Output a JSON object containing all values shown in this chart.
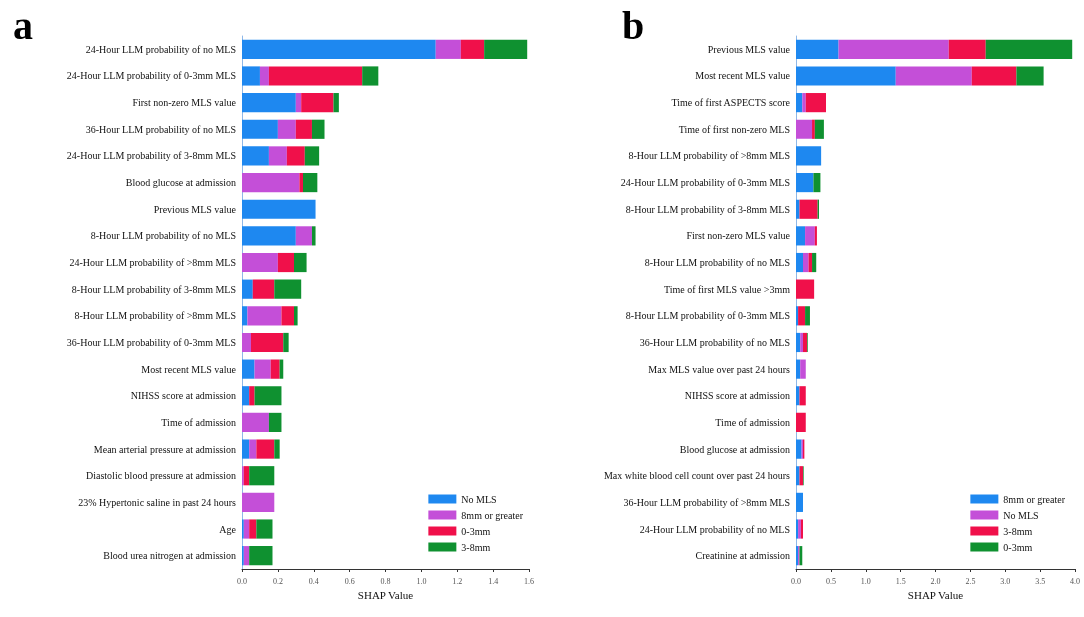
{
  "chart_data": [
    {
      "type": "bar",
      "title": "a",
      "orientation": "horizontal",
      "stacked": true,
      "xlabel": "SHAP Value",
      "legend": "bottom right",
      "grid": false,
      "categories": [
        "24-Hour LLM probability of no MLS",
        "24-Hour LLM probability of 0-3mm MLS",
        "First non-zero MLS value",
        "36-Hour LLM probability of no MLS",
        "24-Hour LLM probability of 3-8mm MLS",
        "Blood glucose at admission",
        "Previous MLS value",
        "8-Hour LLM probability of no MLS",
        "24-Hour LLM probability of >8mm MLS",
        "8-Hour LLM probability of 3-8mm MLS",
        "8-Hour LLM probability of >8mm MLS",
        "36-Hour LLM probability of 0-3mm MLS",
        "Most recent MLS value",
        "NIHSS score at admission",
        "Time of admission",
        "Mean arterial pressure at admission",
        "Diastolic blood pressure at admission",
        "23% Hypertonic saline in past 24 hours",
        "Age",
        "Blood urea nitrogen at admission"
      ],
      "xlim": [
        0,
        1.6
      ],
      "xticks": [
        {
          "value": 0,
          "label": "0.0"
        },
        0.2,
        0.4,
        0.6,
        0.8,
        {
          "value": 1,
          "label": "1.0"
        },
        1.2,
        1.4,
        1.6
      ],
      "series": [
        {
          "name": "No MLS",
          "color": "#1e88f0",
          "values": [
            1.08,
            0.1,
            0.3,
            0.2,
            0.15,
            0,
            0.41,
            0.3,
            0,
            0.06,
            0.03,
            0,
            0.07,
            0.04,
            0,
            0.04,
            0,
            0,
            0.01,
            0.01
          ]
        },
        {
          "name": "8mm or greater",
          "color": "#c44fd8",
          "values": [
            0.14,
            0.05,
            0.03,
            0.1,
            0.1,
            0.32,
            0,
            0.09,
            0.2,
            0,
            0.19,
            0.05,
            0.09,
            0,
            0.15,
            0.04,
            0.01,
            0.18,
            0.03,
            0.03
          ]
        },
        {
          "name": "0-3mm",
          "color": "#f0104a",
          "values": [
            0.13,
            0.52,
            0.18,
            0.09,
            0.1,
            0.02,
            0,
            0,
            0.09,
            0.12,
            0.07,
            0.18,
            0.05,
            0.03,
            0,
            0.1,
            0.03,
            0,
            0.04,
            0
          ]
        },
        {
          "name": "3-8mm",
          "color": "#0f9130",
          "values": [
            0.24,
            0.09,
            0.03,
            0.07,
            0.08,
            0.08,
            0,
            0.02,
            0.07,
            0.15,
            0.02,
            0.03,
            0.02,
            0.15,
            0.07,
            0.03,
            0.14,
            0,
            0.09,
            0.13
          ]
        }
      ]
    },
    {
      "type": "bar",
      "title": "b",
      "orientation": "horizontal",
      "stacked": true,
      "xlabel": "SHAP Value",
      "legend": "bottom right",
      "grid": false,
      "categories": [
        "Previous MLS value",
        "Most recent MLS value",
        "Time of first ASPECTS score",
        "Time of first non-zero MLS",
        "8-Hour LLM probability of >8mm MLS",
        "24-Hour LLM probability of 0-3mm MLS",
        "8-Hour LLM probability of 3-8mm MLS",
        "First non-zero MLS value",
        "8-Hour LLM probability of no MLS",
        "Time of first MLS value >3mm",
        "8-Hour LLM probability of 0-3mm MLS",
        "36-Hour LLM probability of no MLS",
        "Max MLS value over past 24 hours",
        "NIHSS score at admission",
        "Time of admission",
        "Blood glucose at admission",
        "Max white blood cell count over past 24 hours",
        "36-Hour LLM probability of >8mm MLS",
        "24-Hour LLM probability of no MLS",
        "Creatinine at admission"
      ],
      "xlim": [
        0,
        4
      ],
      "xticks": [
        {
          "value": 0,
          "label": "0.0"
        },
        0.5,
        {
          "value": 1,
          "label": "1.0"
        },
        1.5,
        {
          "value": 2,
          "label": "2.0"
        },
        2.5,
        {
          "value": 3,
          "label": "3.0"
        },
        3.5,
        {
          "value": 4,
          "label": "4.0"
        }
      ],
      "series": [
        {
          "name": "8mm or greater",
          "color": "#1e88f0",
          "values": [
            0.61,
            1.43,
            0.09,
            0,
            0.36,
            0.25,
            0.05,
            0.13,
            0.1,
            0,
            0.03,
            0.06,
            0.06,
            0.05,
            0,
            0.08,
            0.05,
            0.1,
            0.03,
            0.03
          ]
        },
        {
          "name": "No MLS",
          "color": "#c44fd8",
          "values": [
            1.58,
            1.09,
            0.05,
            0.23,
            0,
            0,
            0,
            0.14,
            0.08,
            0,
            0,
            0.04,
            0.08,
            0,
            0,
            0.02,
            0,
            0,
            0.04,
            0.02
          ]
        },
        {
          "name": "3-8mm",
          "color": "#f0104a",
          "values": [
            0.53,
            0.64,
            0.29,
            0.04,
            0,
            0,
            0.26,
            0.03,
            0.05,
            0.26,
            0.1,
            0.06,
            0,
            0.09,
            0.14,
            0.02,
            0.05,
            0,
            0.03,
            0
          ]
        },
        {
          "name": "0-3mm",
          "color": "#0f9130",
          "values": [
            1.24,
            0.39,
            0,
            0.13,
            0,
            0.1,
            0.02,
            0,
            0.06,
            0,
            0.07,
            0.01,
            0,
            0,
            0,
            0,
            0.01,
            0,
            0,
            0.04
          ]
        }
      ]
    }
  ]
}
